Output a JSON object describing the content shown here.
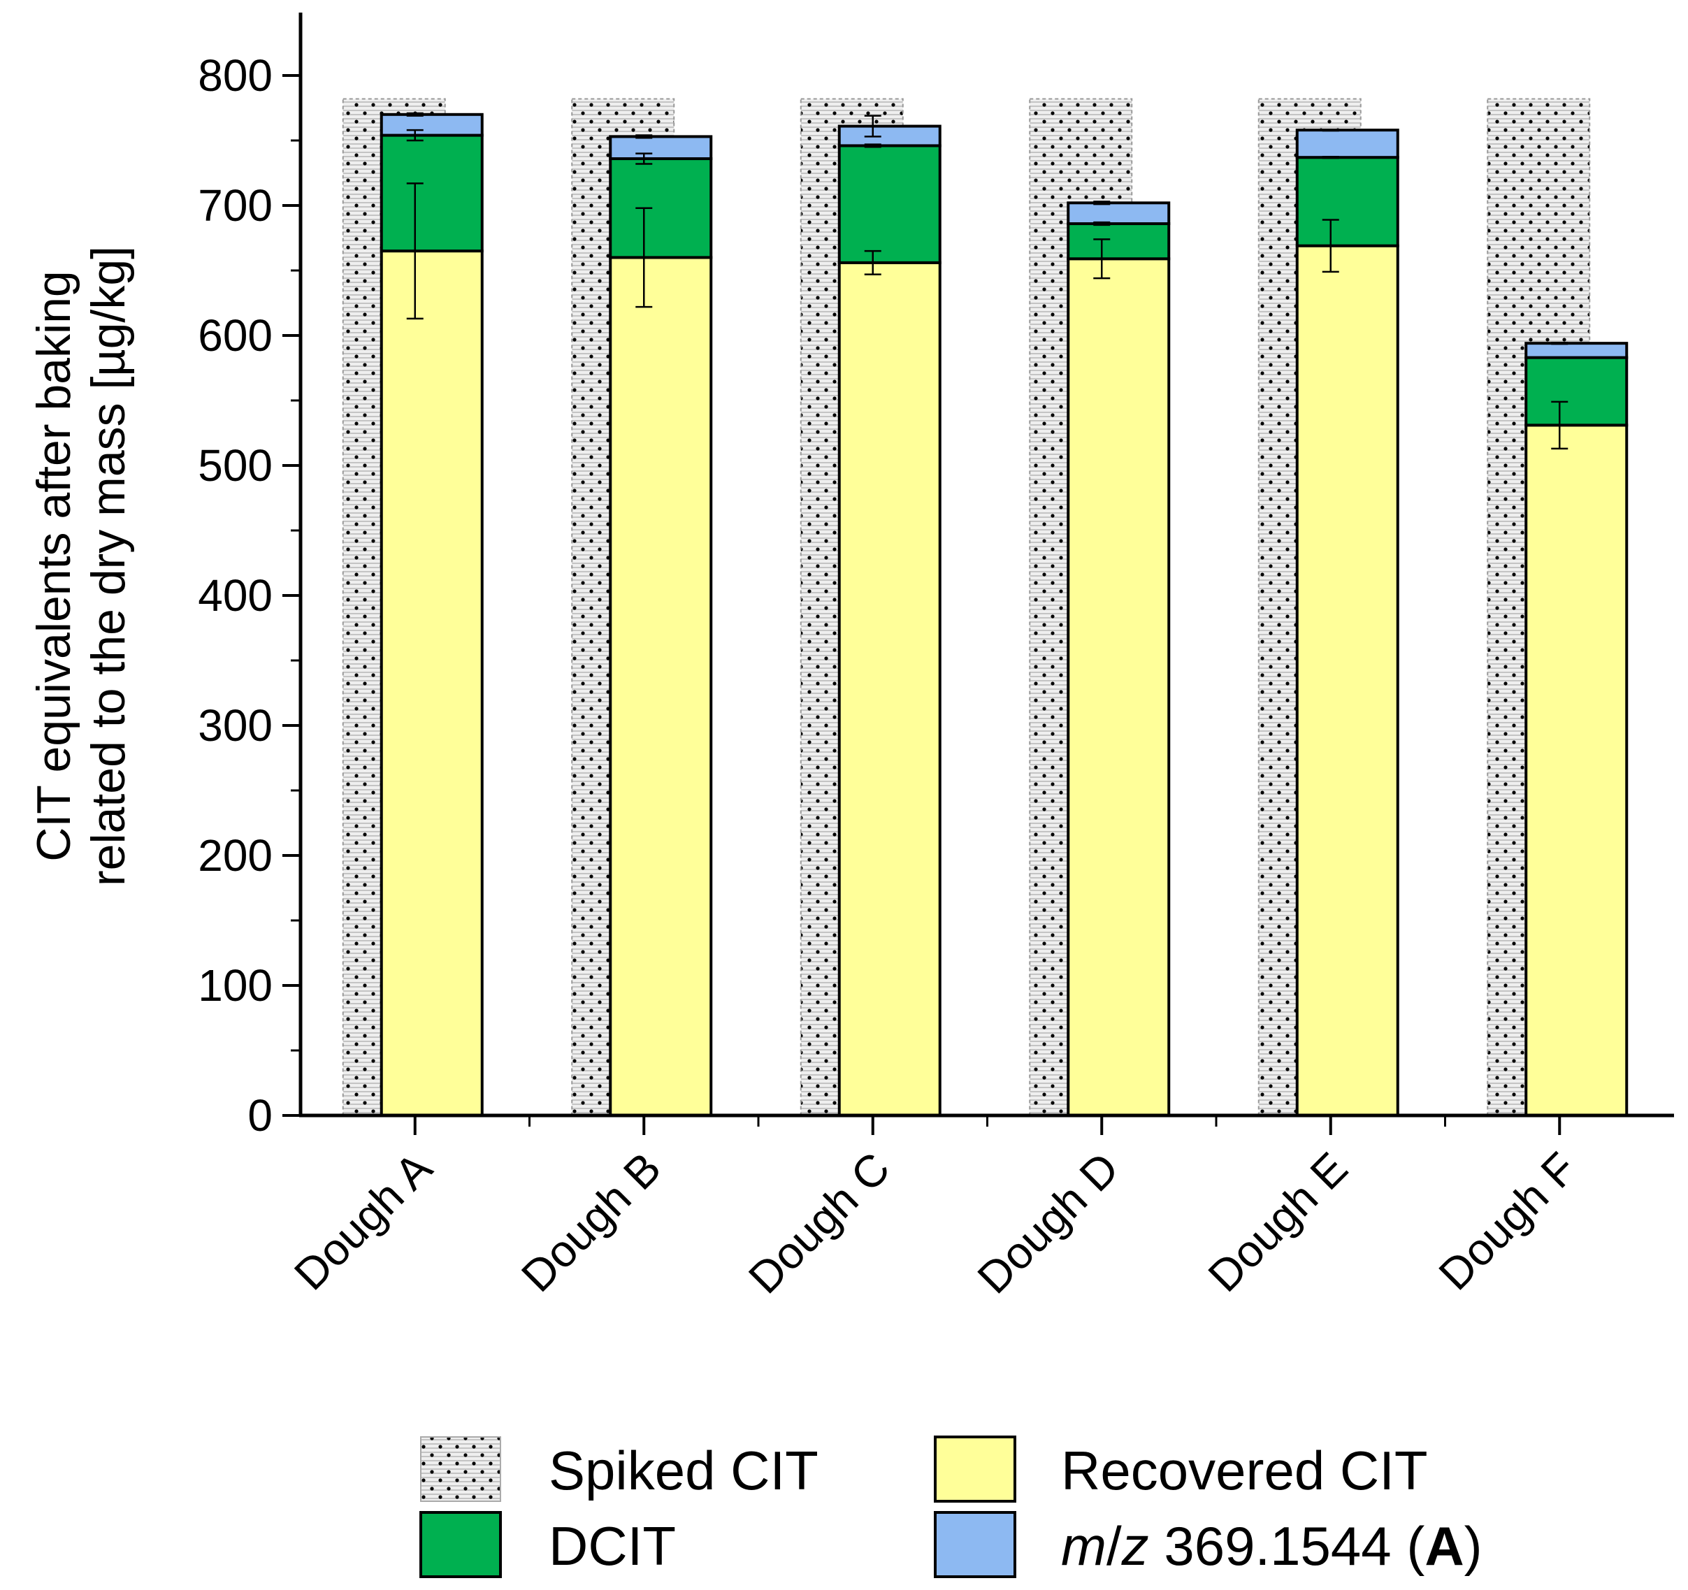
{
  "chart_data": {
    "type": "bar",
    "stacked": true,
    "ylabel_line1": "CIT equivalents after baking",
    "ylabel_line2": "related  to the dry mass [µg/kg]",
    "xlabel": "",
    "ylim": [
      0,
      850
    ],
    "yticks": [
      "0",
      "100",
      "200",
      "300",
      "400",
      "500",
      "600",
      "700",
      "800"
    ],
    "categories": [
      "Dough A",
      "Dough B",
      "Dough C",
      "Dough D",
      "Dough E",
      "Dough F"
    ],
    "spiked": {
      "name": "Spiked CIT",
      "values": [
        782,
        782,
        782,
        782,
        782,
        782
      ]
    },
    "series": [
      {
        "name": "Recovered CIT",
        "color": "#ffff99",
        "values": [
          665,
          660,
          656,
          659,
          669,
          531
        ],
        "errors": [
          52,
          38,
          9,
          15,
          20,
          18
        ]
      },
      {
        "name": "DCIT",
        "color": "#00b050",
        "values": [
          89,
          76,
          90,
          27,
          68,
          52
        ],
        "errors": [
          4,
          4,
          1,
          1,
          0.5,
          0
        ]
      },
      {
        "name": "m/z 369.1544 (A)",
        "color": "#8db9f2",
        "values": [
          16,
          17,
          15,
          16,
          21,
          11
        ],
        "errors": [
          1,
          1,
          8,
          1,
          0.5,
          0.5
        ]
      }
    ],
    "legend": {
      "spiked": "Spiked CIT",
      "recovered": "Recovered CIT",
      "dcit": "DCIT",
      "mz_italic1": "m",
      "mz_slash": "/",
      "mz_italic2": "z",
      "mz_value": " 369.1544 (",
      "mz_bold": "A",
      "mz_close": ")"
    }
  }
}
